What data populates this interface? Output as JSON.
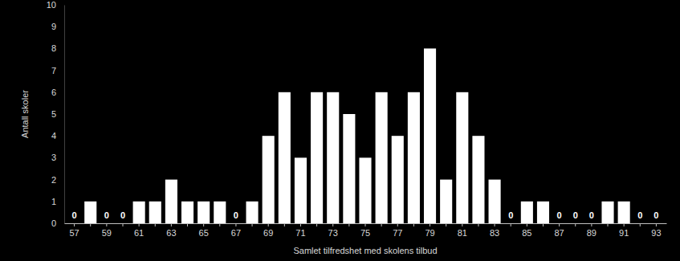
{
  "chart_data": {
    "type": "bar",
    "x_label": "Samlet tilfredshet med skolens tilbud",
    "y_label": "Antall skoler",
    "categories": [
      57,
      null,
      59,
      null,
      61,
      null,
      63,
      null,
      65,
      null,
      67,
      null,
      69,
      null,
      71,
      null,
      73,
      null,
      75,
      null,
      77,
      null,
      79,
      null,
      81,
      null,
      83,
      null,
      85,
      null,
      87,
      null,
      89,
      null,
      91,
      null,
      93
    ],
    "values": [
      0,
      1,
      0,
      0,
      1,
      1,
      2,
      1,
      1,
      1,
      0,
      1,
      4,
      6,
      3,
      6,
      6,
      5,
      3,
      6,
      4,
      6,
      8,
      2,
      6,
      4,
      2,
      0,
      1,
      1,
      0,
      0,
      0,
      1,
      1,
      0,
      0
    ],
    "value_labels": [
      "0",
      null,
      "0",
      "0",
      null,
      null,
      null,
      null,
      null,
      null,
      "0",
      null,
      null,
      null,
      null,
      null,
      null,
      null,
      null,
      null,
      null,
      null,
      null,
      null,
      null,
      null,
      null,
      "0",
      null,
      null,
      "0",
      "0",
      "0",
      null,
      null,
      "0",
      "0"
    ],
    "data_labels": true,
    "color": "#ffffff",
    "ylim": [
      0,
      10
    ],
    "yticks": [
      0,
      1,
      2,
      3,
      4,
      5,
      6,
      7,
      8,
      9,
      10
    ],
    "grid": false
  }
}
